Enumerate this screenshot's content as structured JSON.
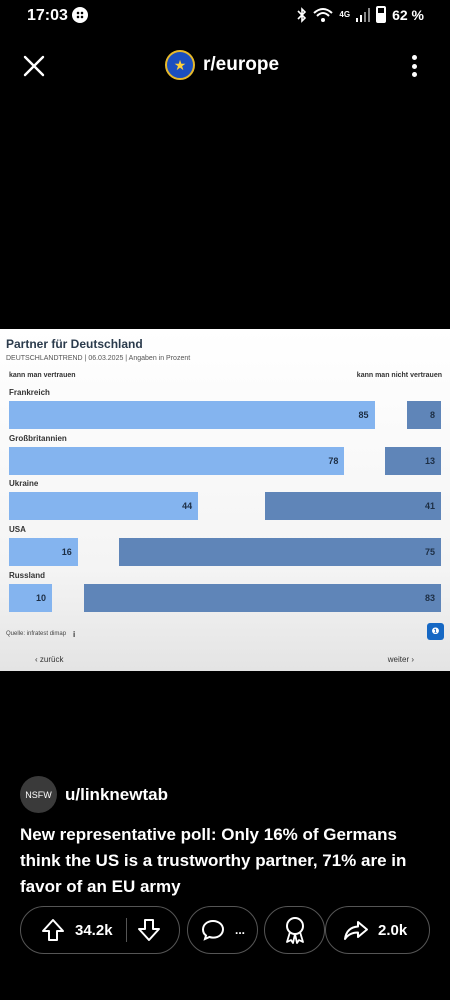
{
  "status_bar": {
    "time": "17:03",
    "network": "4G",
    "battery": "62 %"
  },
  "header": {
    "subreddit": "r/europe"
  },
  "chart_data": {
    "type": "bar",
    "title": "Partner für Deutschland",
    "subtitle": "DEUTSCHLANDTREND | 06.03.2025 | Angaben in Prozent",
    "left_label": "kann man vertrauen",
    "right_label": "kann man nicht vertrauen",
    "categories": [
      "Frankreich",
      "Großbritannien",
      "Ukraine",
      "USA",
      "Russland"
    ],
    "series": [
      {
        "name": "kann man vertrauen",
        "values": [
          85,
          78,
          44,
          16,
          10
        ]
      },
      {
        "name": "kann man nicht vertrauen",
        "values": [
          8,
          13,
          41,
          75,
          83
        ]
      }
    ],
    "colors": {
      "trust": "#84b4ef",
      "distrust": "#5f85b8"
    },
    "source": "Quelle: infratest dimap",
    "back": "zurück",
    "next": "weiter"
  },
  "post": {
    "nsfw_badge": "NSFW",
    "author": "u/linknewtab",
    "title": "New representative poll: Only 16% of Germans think the US is a trustworthy partner, 71% are in favor of an EU army",
    "upvotes": "34.2k",
    "comments": "...",
    "shares": "2.0k"
  }
}
